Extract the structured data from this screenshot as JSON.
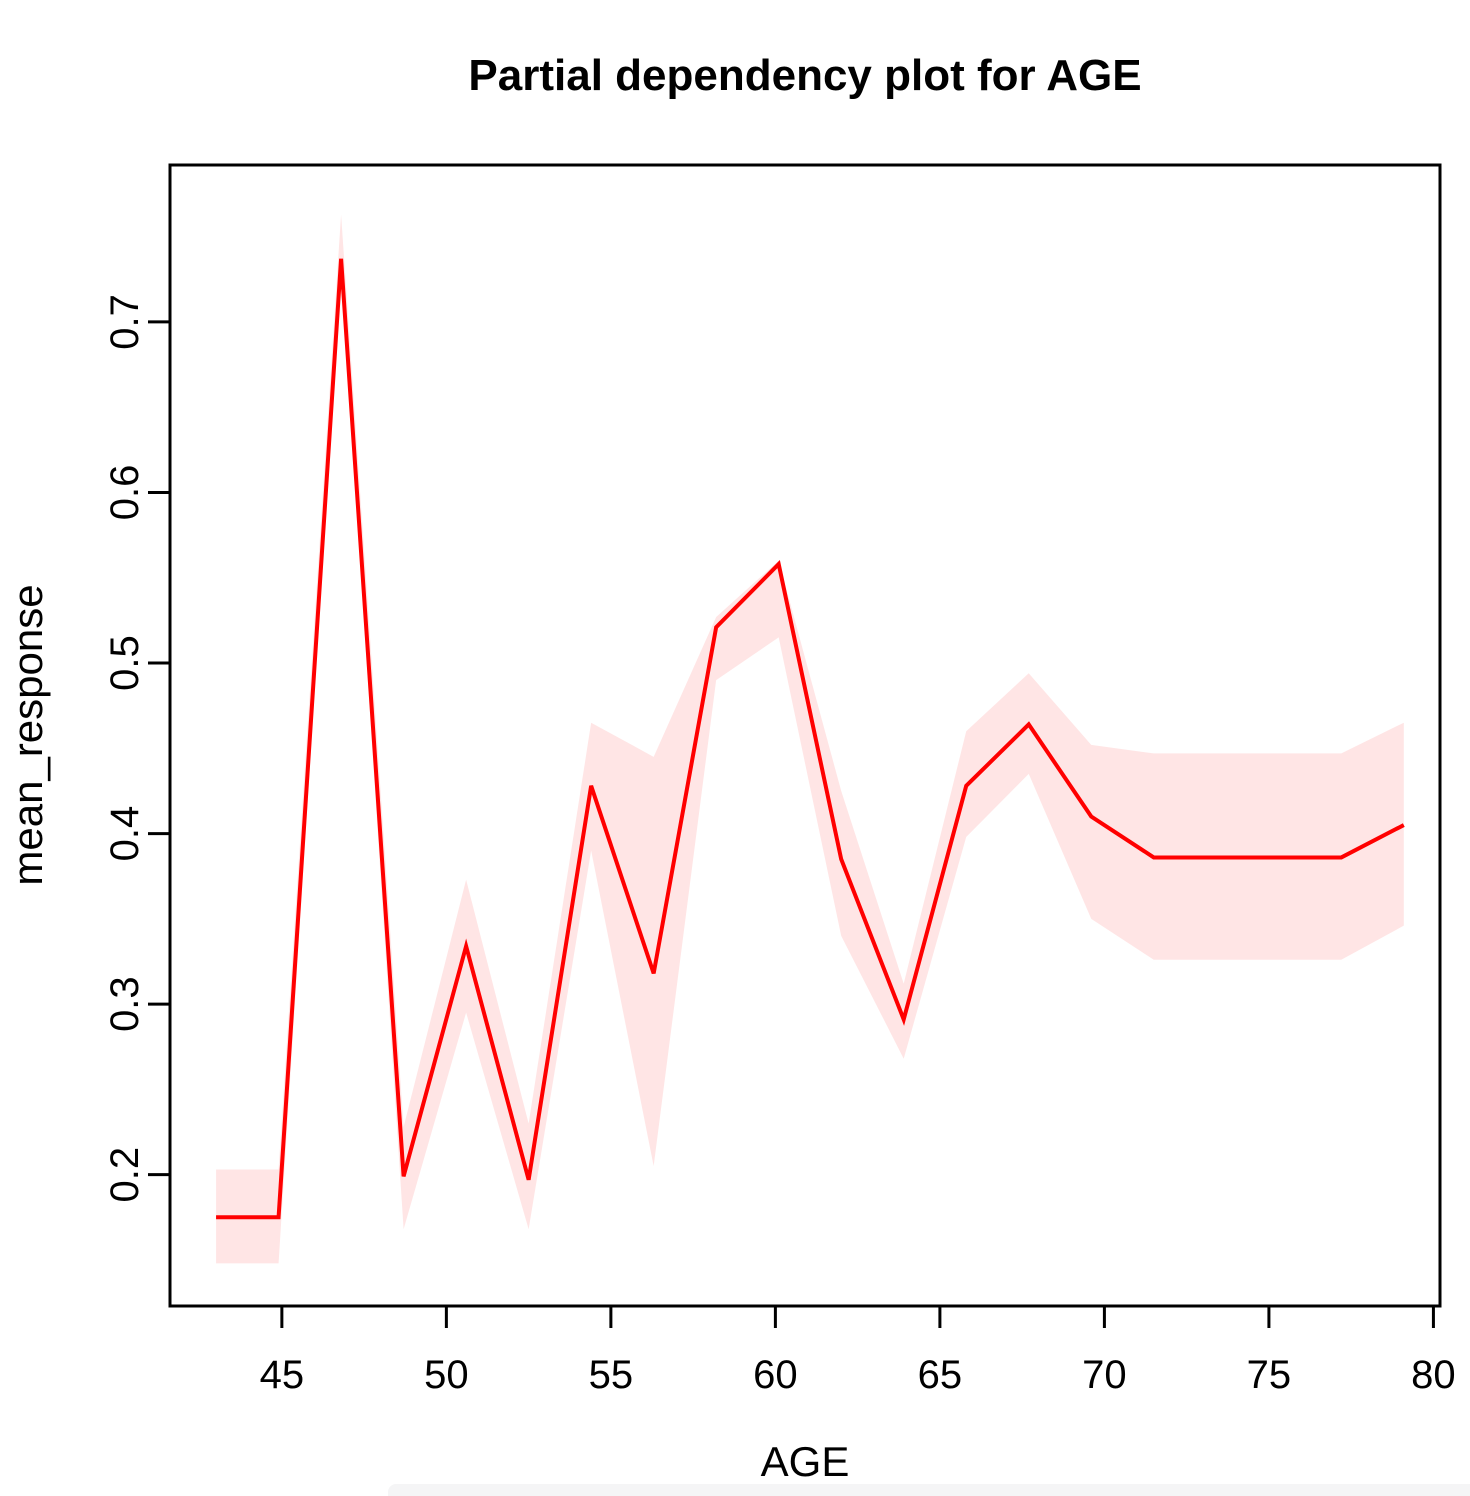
{
  "page": {
    "background": "#ffffff"
  },
  "chart_data": {
    "type": "line",
    "title": "Partial dependency plot for AGE",
    "xlabel": "AGE",
    "ylabel": "mean_response",
    "x_ticks": [
      45,
      50,
      55,
      60,
      65,
      70,
      75,
      80
    ],
    "y_ticks": [
      0.2,
      0.3,
      0.4,
      0.5,
      0.6,
      0.7
    ],
    "xlim": [
      41.6,
      80.2
    ],
    "ylim": [
      0.123,
      0.792
    ],
    "grid": false,
    "legend": "none",
    "line_color": "#ff0000",
    "band_color": "rgba(255,0,0,0.10)",
    "axis_color": "#000000",
    "series": {
      "name": "mean_response",
      "x": [
        43.0,
        44.9,
        46.8,
        48.7,
        50.6,
        52.5,
        54.4,
        56.3,
        58.2,
        60.1,
        62.0,
        63.9,
        65.8,
        67.7,
        69.6,
        71.5,
        73.4,
        75.3,
        77.2,
        79.1
      ],
      "y": [
        0.175,
        0.175,
        0.737,
        0.199,
        0.334,
        0.197,
        0.428,
        0.318,
        0.521,
        0.558,
        0.385,
        0.291,
        0.428,
        0.464,
        0.41,
        0.386,
        0.386,
        0.386,
        0.386,
        0.405
      ],
      "upper": [
        0.203,
        0.203,
        0.763,
        0.228,
        0.373,
        0.23,
        0.465,
        0.445,
        0.527,
        0.56,
        0.425,
        0.312,
        0.46,
        0.494,
        0.452,
        0.447,
        0.447,
        0.447,
        0.447,
        0.465
      ],
      "lower": [
        0.148,
        0.148,
        0.73,
        0.168,
        0.295,
        0.168,
        0.39,
        0.205,
        0.49,
        0.515,
        0.34,
        0.268,
        0.398,
        0.435,
        0.35,
        0.326,
        0.326,
        0.326,
        0.326,
        0.346
      ]
    }
  },
  "footer": {
    "bar_color": "#f5f5f6"
  }
}
